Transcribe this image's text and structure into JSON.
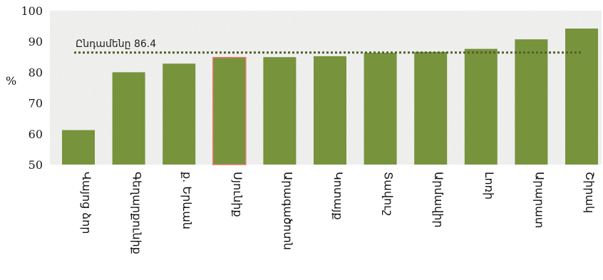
{
  "chart_data": {
    "type": "bar",
    "categories": [
      "Վայոց ձոր",
      "Գեղարքունիք",
      "ք. Երևան",
      "Սյունիք",
      "Արագածոտն",
      "Կոտայք",
      "Տավուշ",
      "Արմավիր",
      "Լոռի",
      "Արարատ",
      "Շիրակ"
    ],
    "values": [
      61.2,
      80.0,
      82.8,
      84.8,
      84.9,
      85.2,
      86.3,
      86.6,
      87.6,
      90.7,
      94.2
    ],
    "ylabel": "%",
    "ylim": [
      50,
      100
    ],
    "yticks": [
      50,
      60,
      70,
      80,
      90,
      100
    ],
    "reference_line": {
      "label": "Ընդամենը 86.4",
      "value": 86.4,
      "style": "dotted"
    },
    "bar_color": "#77933c",
    "reference_color": "#4f6228",
    "highlight_edge_color": "#e07a6a",
    "highlight_index": 3,
    "grid": false,
    "background": "light gray textured"
  }
}
